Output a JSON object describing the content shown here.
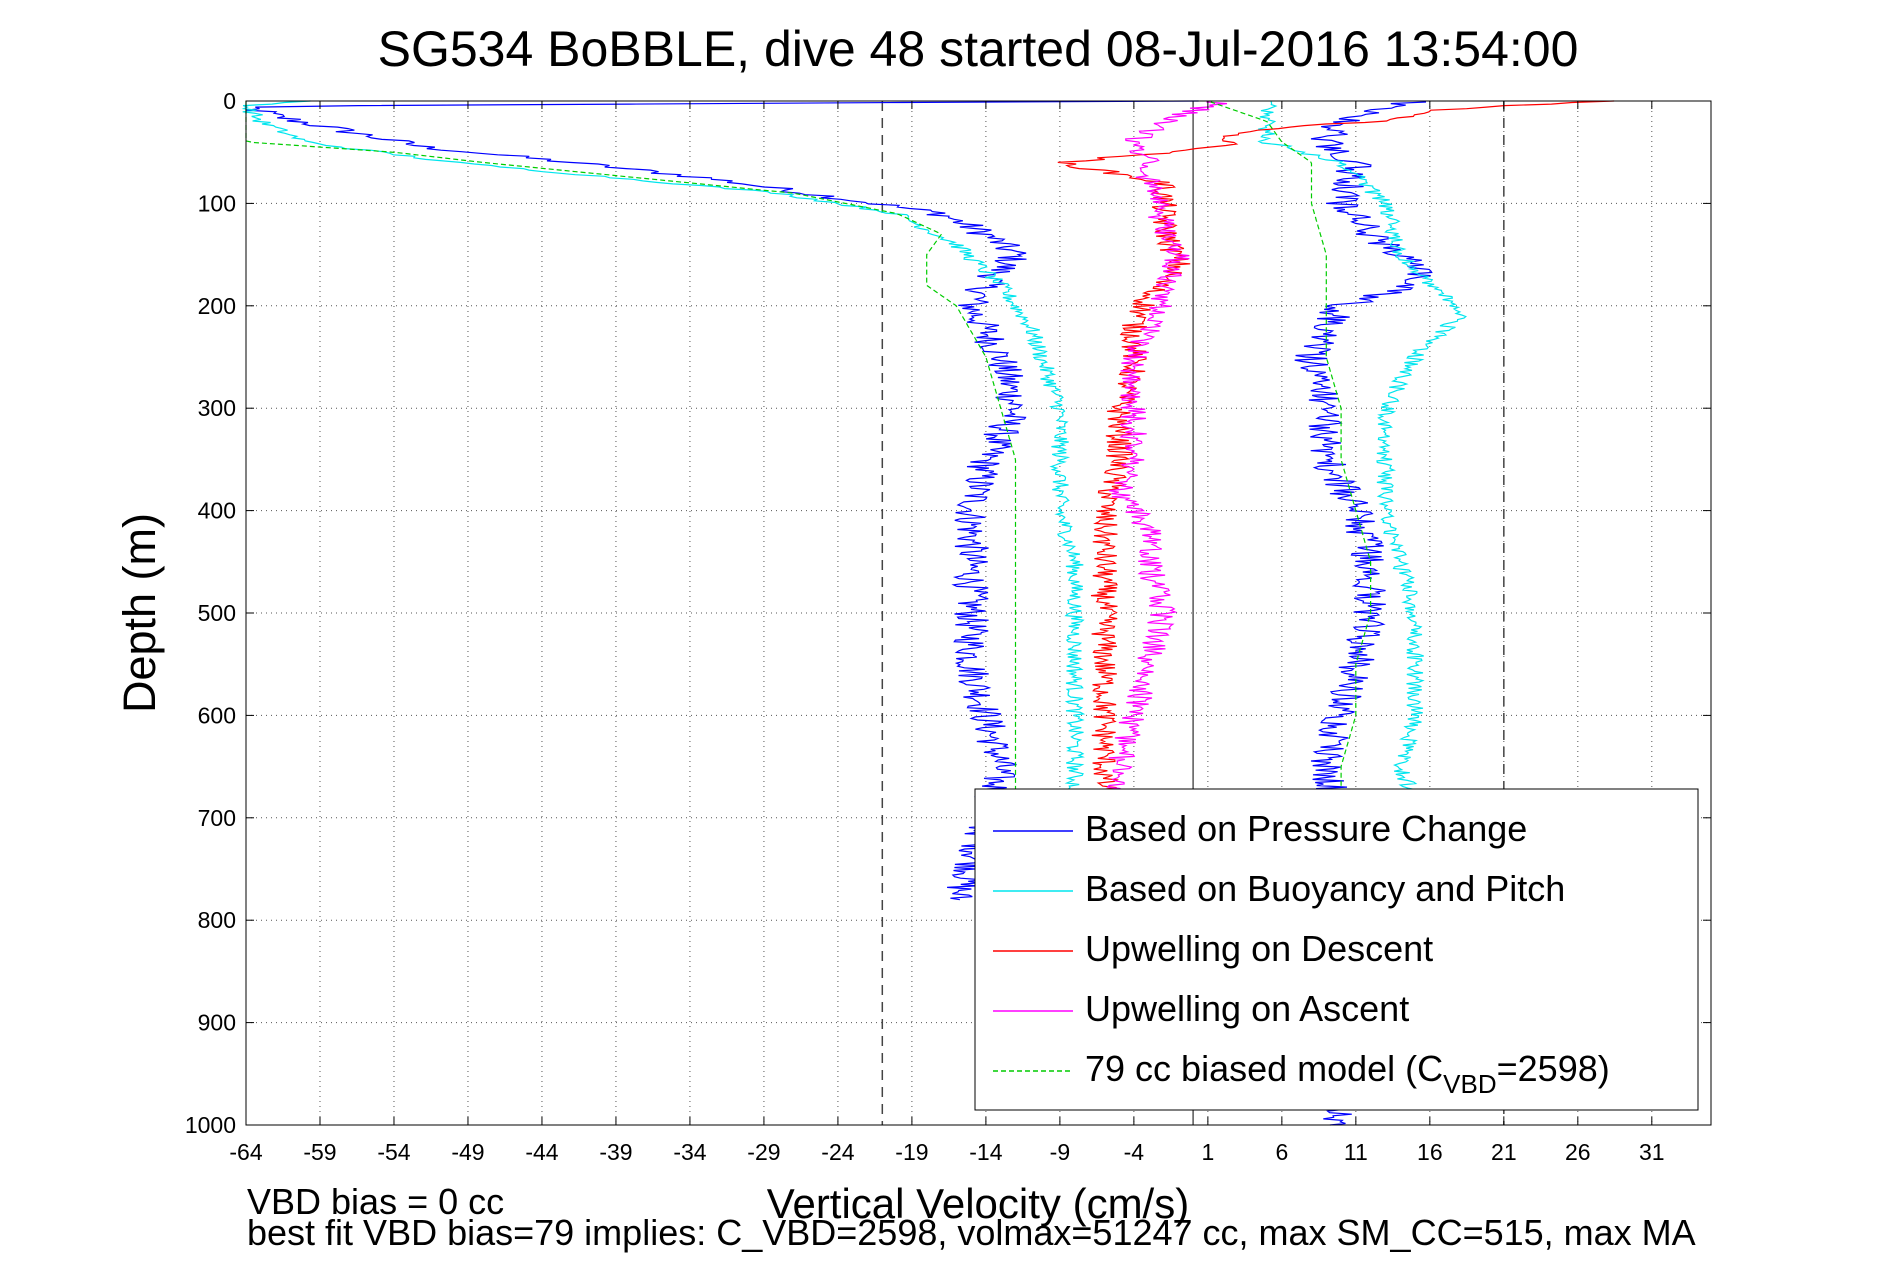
{
  "chart_data": {
    "type": "line",
    "title": "SG534 BoBBLE, dive 48 started 08-Jul-2016 13:54:00",
    "xlabel": "Vertical Velocity (cm/s)",
    "ylabel": "Depth (m)",
    "xlim": [
      -64,
      35
    ],
    "ylim": [
      0,
      1000
    ],
    "y_reversed": true,
    "grid": true,
    "legend_placement": "lower-right",
    "xticks": [
      -64,
      -59,
      -54,
      -49,
      -44,
      -39,
      -34,
      -29,
      -24,
      -19,
      -14,
      -9,
      -4,
      1,
      6,
      11,
      16,
      21,
      26,
      31
    ],
    "yticks": [
      0,
      100,
      200,
      300,
      400,
      500,
      600,
      700,
      800,
      900,
      1000
    ],
    "reference_lines": {
      "solid_x": 0,
      "dashed_x": [
        -21,
        21
      ]
    },
    "series": [
      {
        "name": "Based on Pressure Change",
        "color": "#0000ff",
        "noise": 1.2,
        "descent": [
          [
            0,
            0
          ],
          [
            5,
            -64
          ],
          [
            15,
            -62
          ],
          [
            30,
            -57
          ],
          [
            45,
            -52
          ],
          [
            60,
            -42
          ],
          [
            75,
            -33
          ],
          [
            90,
            -26
          ],
          [
            110,
            -17
          ],
          [
            130,
            -14
          ],
          [
            150,
            -12
          ],
          [
            180,
            -14
          ],
          [
            200,
            -15
          ],
          [
            250,
            -13
          ],
          [
            300,
            -12
          ],
          [
            350,
            -14
          ],
          [
            400,
            -15
          ],
          [
            450,
            -15
          ],
          [
            500,
            -15
          ],
          [
            550,
            -15
          ],
          [
            600,
            -14
          ],
          [
            650,
            -13
          ],
          [
            700,
            -14
          ],
          [
            750,
            -15
          ],
          [
            780,
            -16
          ]
        ],
        "ascent": [
          [
            1000,
            10
          ],
          [
            900,
            9
          ],
          [
            800,
            10
          ],
          [
            700,
            10
          ],
          [
            650,
            9
          ],
          [
            600,
            10
          ],
          [
            550,
            11
          ],
          [
            500,
            12
          ],
          [
            450,
            12
          ],
          [
            400,
            11
          ],
          [
            350,
            9
          ],
          [
            300,
            9
          ],
          [
            250,
            8
          ],
          [
            200,
            10
          ],
          [
            180,
            15
          ],
          [
            160,
            15
          ],
          [
            130,
            12
          ],
          [
            100,
            10
          ],
          [
            60,
            11
          ],
          [
            40,
            9
          ],
          [
            20,
            10
          ],
          [
            0,
            15
          ]
        ]
      },
      {
        "name": "Based on Buoyancy and Pitch",
        "color": "#00e5ee",
        "noise": 0.6,
        "descent": [
          [
            0,
            -60
          ],
          [
            5,
            -64
          ],
          [
            20,
            -63
          ],
          [
            40,
            -60
          ],
          [
            60,
            -50
          ],
          [
            75,
            -39
          ],
          [
            90,
            -28
          ],
          [
            110,
            -20
          ],
          [
            140,
            -16
          ],
          [
            180,
            -13
          ],
          [
            220,
            -11
          ],
          [
            260,
            -10
          ],
          [
            300,
            -9
          ],
          [
            350,
            -9
          ],
          [
            400,
            -9
          ],
          [
            450,
            -8
          ],
          [
            500,
            -8
          ],
          [
            550,
            -8
          ],
          [
            600,
            -8
          ],
          [
            650,
            -8
          ],
          [
            700,
            -8
          ]
        ],
        "ascent": [
          [
            680,
            15
          ],
          [
            650,
            14
          ],
          [
            600,
            15
          ],
          [
            550,
            15
          ],
          [
            500,
            15
          ],
          [
            450,
            14
          ],
          [
            400,
            13
          ],
          [
            350,
            13
          ],
          [
            300,
            13
          ],
          [
            250,
            15
          ],
          [
            210,
            18
          ],
          [
            190,
            17
          ],
          [
            150,
            14
          ],
          [
            100,
            13
          ],
          [
            60,
            10
          ],
          [
            40,
            5
          ],
          [
            20,
            5
          ],
          [
            0,
            5
          ]
        ]
      },
      {
        "name": "Upwelling on Descent",
        "color": "#ff0000",
        "noise": 0.9,
        "descent": [
          [
            0,
            28
          ],
          [
            8,
            17
          ],
          [
            20,
            12
          ],
          [
            30,
            3
          ],
          [
            45,
            2
          ],
          [
            60,
            -9
          ],
          [
            80,
            -2
          ],
          [
            120,
            -2
          ],
          [
            160,
            -1
          ],
          [
            190,
            -3
          ],
          [
            220,
            -4
          ],
          [
            260,
            -4
          ],
          [
            300,
            -5
          ],
          [
            350,
            -5
          ],
          [
            400,
            -6
          ],
          [
            450,
            -6
          ],
          [
            500,
            -6
          ],
          [
            550,
            -6
          ],
          [
            600,
            -6
          ],
          [
            650,
            -6
          ],
          [
            700,
            -6
          ]
        ],
        "ascent": []
      },
      {
        "name": "Upwelling on Ascent",
        "color": "#ff00ff",
        "noise": 0.9,
        "descent": [],
        "ascent": [
          [
            700,
            -5
          ],
          [
            650,
            -5
          ],
          [
            600,
            -4
          ],
          [
            550,
            -3
          ],
          [
            500,
            -2
          ],
          [
            450,
            -3
          ],
          [
            420,
            -3
          ],
          [
            400,
            -4
          ],
          [
            380,
            -5
          ],
          [
            350,
            -4
          ],
          [
            300,
            -4
          ],
          [
            250,
            -4
          ],
          [
            220,
            -3
          ],
          [
            190,
            -2
          ],
          [
            150,
            -1
          ],
          [
            120,
            -2
          ],
          [
            80,
            -3
          ],
          [
            60,
            -3
          ],
          [
            40,
            -4
          ],
          [
            20,
            -2
          ],
          [
            0,
            2
          ]
        ]
      },
      {
        "name": "79 cc biased model",
        "color": "#00cc00",
        "noise": 0,
        "descent": [
          [
            0,
            -64
          ],
          [
            40,
            -64
          ],
          [
            50,
            -54
          ],
          [
            60,
            -48
          ],
          [
            80,
            -34
          ],
          [
            90,
            -27
          ],
          [
            110,
            -20
          ],
          [
            130,
            -17
          ],
          [
            150,
            -18
          ],
          [
            180,
            -18
          ],
          [
            200,
            -16
          ],
          [
            250,
            -14
          ],
          [
            300,
            -13
          ],
          [
            350,
            -12
          ],
          [
            400,
            -12
          ],
          [
            450,
            -12
          ],
          [
            500,
            -12
          ],
          [
            550,
            -12
          ],
          [
            600,
            -12
          ],
          [
            650,
            -12
          ],
          [
            700,
            -12
          ]
        ],
        "ascent": [
          [
            700,
            10
          ],
          [
            650,
            10
          ],
          [
            600,
            11
          ],
          [
            550,
            11
          ],
          [
            500,
            12
          ],
          [
            450,
            12
          ],
          [
            400,
            11
          ],
          [
            350,
            10
          ],
          [
            300,
            10
          ],
          [
            250,
            9
          ],
          [
            200,
            9
          ],
          [
            180,
            9
          ],
          [
            150,
            9
          ],
          [
            100,
            8
          ],
          [
            60,
            8
          ],
          [
            40,
            6
          ],
          [
            20,
            5
          ],
          [
            10,
            3
          ],
          [
            0,
            1
          ]
        ]
      }
    ],
    "legend": {
      "entries": [
        "Based on Pressure Change",
        "Based on Buoyancy and Pitch",
        "Upwelling on Descent",
        "Upwelling on Ascent"
      ],
      "model_prefix": "79 cc biased model (C",
      "model_sub": "VBD",
      "model_suffix": "=2598)"
    }
  },
  "footer": {
    "line1": "VBD bias = 0 cc",
    "line2": "best fit VBD bias=79 implies: C_VBD=2598, volmax=51247 cc, max SM_CC=515, max MA"
  }
}
